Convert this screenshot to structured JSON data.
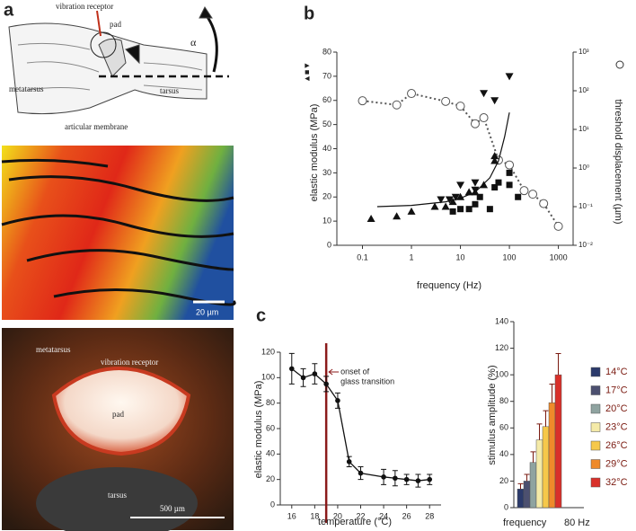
{
  "panel_labels": [
    "a",
    "b",
    "c"
  ],
  "panel_a": {
    "drawing_labels": {
      "receptor": "vibration receptor",
      "pad": "pad",
      "metatarsus": "metatarsus",
      "tarsus": "tarsus",
      "membrane": "articular membrane",
      "angle": "α"
    },
    "micrograph_scale": "20 µm",
    "photo_labels": {
      "metatarsus": "metatarsus",
      "receptor": "vibration receptor",
      "pad": "pad",
      "tarsus": "tarsus"
    },
    "photo_scale": "500 µm"
  },
  "chart_data": [
    {
      "type": "scatter",
      "x_label": "frequency (Hz)",
      "y_label": "elastic modulus (MPa)",
      "y2_label": "threshold displacement (µm)",
      "xscale": "log",
      "xlim": [
        0.03,
        2000
      ],
      "xticks": [
        0.1,
        1,
        10,
        100,
        1000
      ],
      "ylim": [
        0,
        80
      ],
      "yticks": [
        0,
        10,
        20,
        30,
        40,
        50,
        60,
        70,
        80
      ],
      "y2scale": "log",
      "y2lim": [
        0.01,
        1000
      ],
      "y2ticks": [
        {
          "value": 0.01,
          "label": "10⁻²"
        },
        {
          "value": 0.1,
          "label": "10⁻¹"
        },
        {
          "value": 1,
          "label": "10⁰"
        },
        {
          "value": 10,
          "label": "10¹"
        },
        {
          "value": 100,
          "label": "10²"
        },
        {
          "value": 1000,
          "label": "10³"
        }
      ],
      "series": [
        {
          "marker": "circle-open",
          "linestyle": "dotted",
          "color": "#555555",
          "axis": "y2",
          "x": [
            0.1,
            0.5,
            1,
            5,
            10,
            20,
            30,
            60,
            100,
            200,
            300,
            500,
            1000
          ],
          "values": [
            55,
            43,
            85,
            53,
            40,
            14,
            20,
            1.6,
            1.2,
            0.26,
            0.21,
            0.12,
            0.031
          ]
        },
        {
          "marker": "triangle-up",
          "linestyle": null,
          "color": "#111111",
          "x": [
            0.15,
            0.5,
            1,
            3,
            5,
            7,
            10,
            15,
            20,
            30,
            50,
            50
          ],
          "values": [
            11,
            12,
            14,
            16,
            16,
            18,
            20,
            22,
            22,
            25,
            37,
            35
          ]
        },
        {
          "marker": "triangle-down",
          "linestyle": null,
          "color": "#111111",
          "x": [
            4,
            6,
            8,
            10,
            20,
            20,
            30,
            50,
            100
          ],
          "values": [
            19,
            19,
            20,
            25,
            23,
            26,
            63,
            60,
            70
          ]
        },
        {
          "marker": "square",
          "linestyle": null,
          "color": "#111111",
          "x": [
            7,
            10,
            15,
            20,
            25,
            40,
            50,
            60,
            100,
            100,
            150
          ],
          "values": [
            14,
            15,
            15,
            17,
            20,
            15,
            24,
            26,
            30,
            25,
            20
          ]
        },
        {
          "marker": "none",
          "linestyle": "solid",
          "color": "#111111",
          "x": [
            0.2,
            1,
            5,
            10,
            20,
            40,
            60,
            80,
            100
          ],
          "values": [
            16,
            16.5,
            18,
            19.5,
            22,
            28,
            35,
            45,
            55
          ]
        }
      ]
    },
    {
      "type": "line",
      "x_label": "temperature (°C)",
      "y_label": "elastic modulus (MPa)",
      "xlim": [
        15,
        29
      ],
      "xticks": [
        16,
        18,
        20,
        22,
        24,
        26,
        28
      ],
      "ylim": [
        0,
        120
      ],
      "yticks": [
        0,
        20,
        40,
        60,
        80,
        100,
        120
      ],
      "vline": {
        "x": 19,
        "color": "#8b1a1a",
        "label": [
          "onset of",
          "glass transition"
        ]
      },
      "x": [
        16,
        17,
        18,
        19,
        20,
        21,
        22,
        24,
        25,
        26,
        27,
        28
      ],
      "series": [
        {
          "color": "#111111",
          "values": [
            107,
            100,
            103,
            95,
            82,
            34,
            25,
            22,
            21,
            20,
            19,
            20
          ],
          "errors": [
            12,
            7,
            8,
            6,
            6,
            4,
            5,
            6,
            6,
            4,
            5,
            4
          ]
        }
      ]
    },
    {
      "type": "bar",
      "x_label": "frequency",
      "y_label": "stimulus amplitude (%)",
      "categories": [
        "80 Hz"
      ],
      "ylim": [
        0,
        140
      ],
      "yticks": [
        0,
        20,
        40,
        60,
        80,
        100,
        120,
        140
      ],
      "series": [
        {
          "name": "14°C",
          "color": "#2b3a6b",
          "values": [
            14
          ],
          "errors": [
            4
          ]
        },
        {
          "name": "17°C",
          "color": "#4c5070",
          "values": [
            20
          ],
          "errors": [
            5
          ]
        },
        {
          "name": "20°C",
          "color": "#8fa3a0",
          "values": [
            34
          ],
          "errors": [
            8
          ]
        },
        {
          "name": "23°C",
          "color": "#f4eaa8",
          "values": [
            51
          ],
          "errors": [
            12
          ]
        },
        {
          "name": "26°C",
          "color": "#f6c84a",
          "values": [
            61
          ],
          "errors": [
            12
          ]
        },
        {
          "name": "29°C",
          "color": "#ef8a2a",
          "values": [
            79
          ],
          "errors": [
            14
          ]
        },
        {
          "name": "32°C",
          "color": "#d9302a",
          "values": [
            100
          ],
          "errors": [
            16
          ]
        }
      ]
    }
  ]
}
